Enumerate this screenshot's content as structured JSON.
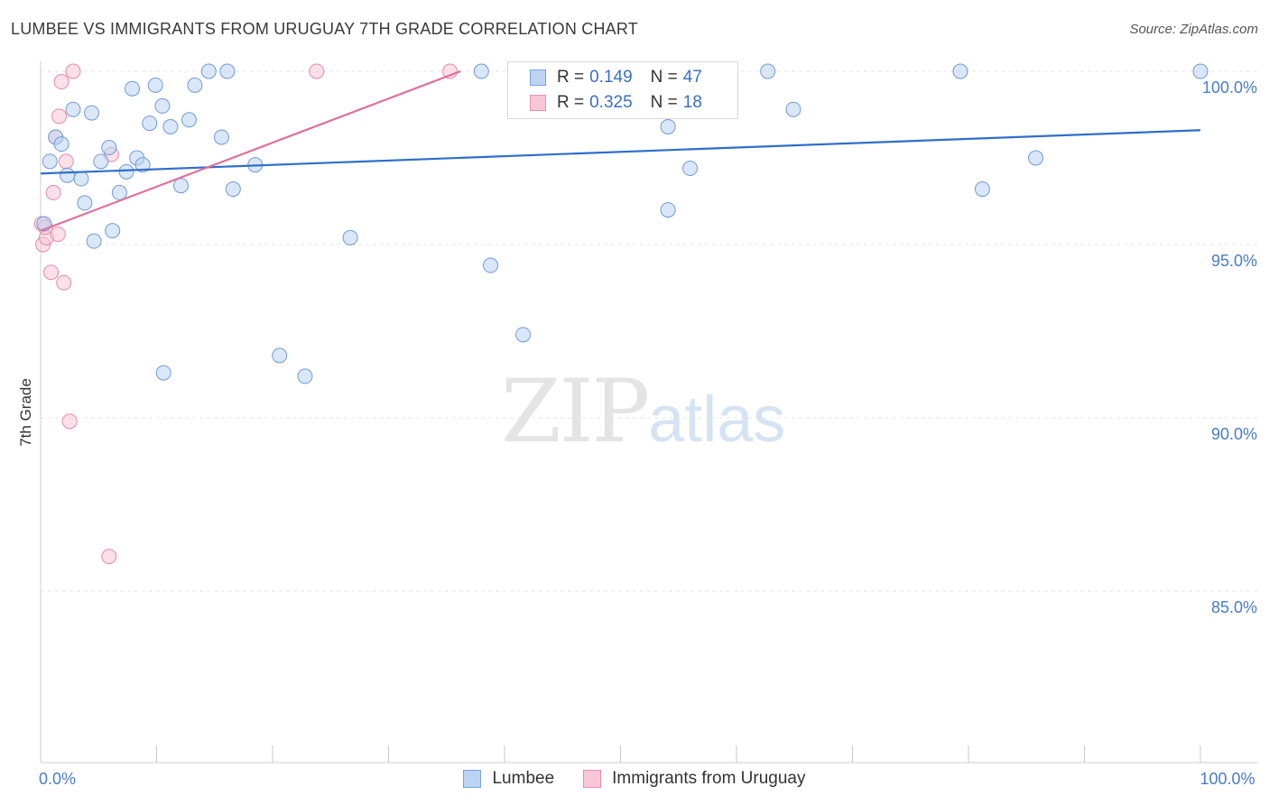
{
  "title": "LUMBEE VS IMMIGRANTS FROM URUGUAY 7TH GRADE CORRELATION CHART",
  "source": "Source: ZipAtlas.com",
  "watermark": {
    "zip": "ZIP",
    "atlas": "atlas"
  },
  "legend": {
    "rows": [
      {
        "r_label": "R =",
        "r_value": "0.149",
        "n_label": "N =",
        "n_value": "47",
        "fill": "#bcd3f2",
        "stroke": "#7aa3dc"
      },
      {
        "r_label": "R =",
        "r_value": "0.325",
        "n_label": "N =",
        "n_value": "18",
        "fill": "#f8c6d6",
        "stroke": "#e890ae"
      }
    ]
  },
  "bottom_legend": [
    {
      "label": "Lumbee",
      "fill": "#bcd3f2",
      "stroke": "#7aa3dc"
    },
    {
      "label": "Immigrants from Uruguay",
      "fill": "#f8c6d6",
      "stroke": "#e890ae"
    }
  ],
  "colors": {
    "blue_line": "#2f6fc9",
    "pink_line": "#e0709a",
    "blue_fill": "#bcd3f2",
    "blue_stroke": "#6f9bd8",
    "pink_fill": "#f8c6d6",
    "pink_stroke": "#e48aab",
    "grid": "#e6e6e6",
    "tick_label": "#4a7cc7"
  },
  "chart_data": {
    "type": "scatter",
    "title": "LUMBEE VS IMMIGRANTS FROM URUGUAY 7TH GRADE CORRELATION CHART",
    "xlabel": "",
    "ylabel": "7th Grade",
    "xlim": [
      0,
      100
    ],
    "ylim": [
      80.8,
      100.7
    ],
    "y_ticks": [
      {
        "value": 100,
        "label": "100.0%"
      },
      {
        "value": 95,
        "label": "95.0%"
      },
      {
        "value": 90,
        "label": "90.0%"
      },
      {
        "value": 85,
        "label": "85.0%"
      }
    ],
    "x_tick_labels": [
      {
        "value": 0,
        "label": "0.0%"
      },
      {
        "value": 100,
        "label": "100.0%"
      }
    ],
    "grid": true,
    "legend_placement": "top-center",
    "series": [
      {
        "name": "Lumbee",
        "trend": {
          "x": [
            0,
            100
          ],
          "y": [
            97.05,
            98.3
          ]
        },
        "points": [
          {
            "x": 0.8,
            "y": 97.4
          },
          {
            "x": 1.3,
            "y": 98.1
          },
          {
            "x": 1.8,
            "y": 97.9
          },
          {
            "x": 2.3,
            "y": 97.0
          },
          {
            "x": 2.8,
            "y": 98.9
          },
          {
            "x": 3.5,
            "y": 96.9
          },
          {
            "x": 3.8,
            "y": 96.2
          },
          {
            "x": 4.4,
            "y": 98.8
          },
          {
            "x": 4.6,
            "y": 95.1
          },
          {
            "x": 5.2,
            "y": 97.4
          },
          {
            "x": 5.9,
            "y": 97.8
          },
          {
            "x": 6.2,
            "y": 95.4
          },
          {
            "x": 6.8,
            "y": 96.5
          },
          {
            "x": 7.4,
            "y": 97.1
          },
          {
            "x": 7.9,
            "y": 99.5
          },
          {
            "x": 8.3,
            "y": 97.5
          },
          {
            "x": 8.8,
            "y": 97.3
          },
          {
            "x": 9.4,
            "y": 98.5
          },
          {
            "x": 9.9,
            "y": 99.6
          },
          {
            "x": 10.5,
            "y": 99.0
          },
          {
            "x": 11.2,
            "y": 98.4
          },
          {
            "x": 12.1,
            "y": 96.7
          },
          {
            "x": 12.8,
            "y": 98.6
          },
          {
            "x": 13.3,
            "y": 99.6
          },
          {
            "x": 14.5,
            "y": 100.0
          },
          {
            "x": 15.6,
            "y": 98.1
          },
          {
            "x": 16.1,
            "y": 100.0
          },
          {
            "x": 16.6,
            "y": 96.6
          },
          {
            "x": 18.5,
            "y": 97.3
          },
          {
            "x": 20.6,
            "y": 91.8
          },
          {
            "x": 22.8,
            "y": 91.2
          },
          {
            "x": 26.7,
            "y": 95.2
          },
          {
            "x": 38.0,
            "y": 100.0
          },
          {
            "x": 38.8,
            "y": 94.4
          },
          {
            "x": 41.6,
            "y": 92.4
          },
          {
            "x": 52.2,
            "y": 99.9
          },
          {
            "x": 54.1,
            "y": 98.4
          },
          {
            "x": 54.1,
            "y": 96.0
          },
          {
            "x": 56.0,
            "y": 97.2
          },
          {
            "x": 62.7,
            "y": 100.0
          },
          {
            "x": 64.9,
            "y": 98.9
          },
          {
            "x": 79.3,
            "y": 100.0
          },
          {
            "x": 81.2,
            "y": 96.6
          },
          {
            "x": 85.8,
            "y": 97.5
          },
          {
            "x": 100.0,
            "y": 100.0
          },
          {
            "x": 10.6,
            "y": 91.3
          },
          {
            "x": 0.3,
            "y": 95.6
          }
        ]
      },
      {
        "name": "Immigrants from Uruguay",
        "trend": {
          "x": [
            0,
            36.2
          ],
          "y": [
            95.4,
            100.0
          ]
        },
        "points": [
          {
            "x": 0.1,
            "y": 95.6
          },
          {
            "x": 0.2,
            "y": 95.0
          },
          {
            "x": 0.5,
            "y": 95.2
          },
          {
            "x": 0.9,
            "y": 94.2
          },
          {
            "x": 1.1,
            "y": 96.5
          },
          {
            "x": 1.3,
            "y": 98.1
          },
          {
            "x": 1.6,
            "y": 98.7
          },
          {
            "x": 1.8,
            "y": 99.7
          },
          {
            "x": 2.0,
            "y": 93.9
          },
          {
            "x": 2.2,
            "y": 97.4
          },
          {
            "x": 2.5,
            "y": 89.9
          },
          {
            "x": 2.8,
            "y": 100.0
          },
          {
            "x": 6.1,
            "y": 97.6
          },
          {
            "x": 5.9,
            "y": 86.0
          },
          {
            "x": 23.8,
            "y": 100.0
          },
          {
            "x": 35.3,
            "y": 100.0
          },
          {
            "x": 1.5,
            "y": 95.3
          },
          {
            "x": 0.4,
            "y": 95.5
          }
        ]
      }
    ]
  }
}
